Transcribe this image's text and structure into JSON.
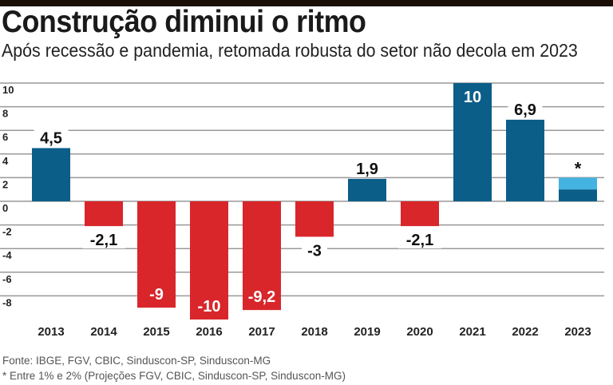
{
  "title": "Construção diminui o ritmo",
  "subtitle": "Após recessão e pandemia, retomada robusta do setor não decola em 2023",
  "chart_data": {
    "type": "bar",
    "categories": [
      "2013",
      "2014",
      "2015",
      "2016",
      "2017",
      "2018",
      "2019",
      "2020",
      "2021",
      "2022",
      "2023"
    ],
    "values": [
      4.5,
      -2.1,
      -9,
      -10,
      -9.2,
      -3,
      1.9,
      -2.1,
      10,
      6.9,
      2
    ],
    "labels": [
      "4,5",
      "-2,1",
      "-9",
      "-10",
      "-9,2",
      "-3",
      "1,9",
      "-2,1",
      "10",
      "6,9",
      "*"
    ],
    "projection_range_2023": [
      1,
      2
    ],
    "ylim": [
      -10,
      10
    ],
    "yticks": [
      10,
      8,
      6,
      4,
      2,
      0,
      -2,
      -4,
      -6,
      -8
    ],
    "ytick_labels": [
      "10",
      "8",
      "6",
      "4",
      "2",
      "0",
      "-2",
      "-4",
      "-6",
      "-8"
    ],
    "grid": true,
    "colors": {
      "positive": "#0b5e88",
      "negative": "#d8262b",
      "projection": "#45b3e1"
    }
  },
  "footer": {
    "source": "Fonte: IBGE, FGV, CBIC, Sinduscon-SP, Sinduscon-MG",
    "note": "* Entre 1% e 2% (Projeções FGV, CBIC, Sinduscon-SP, Sinduscon-MG)"
  }
}
